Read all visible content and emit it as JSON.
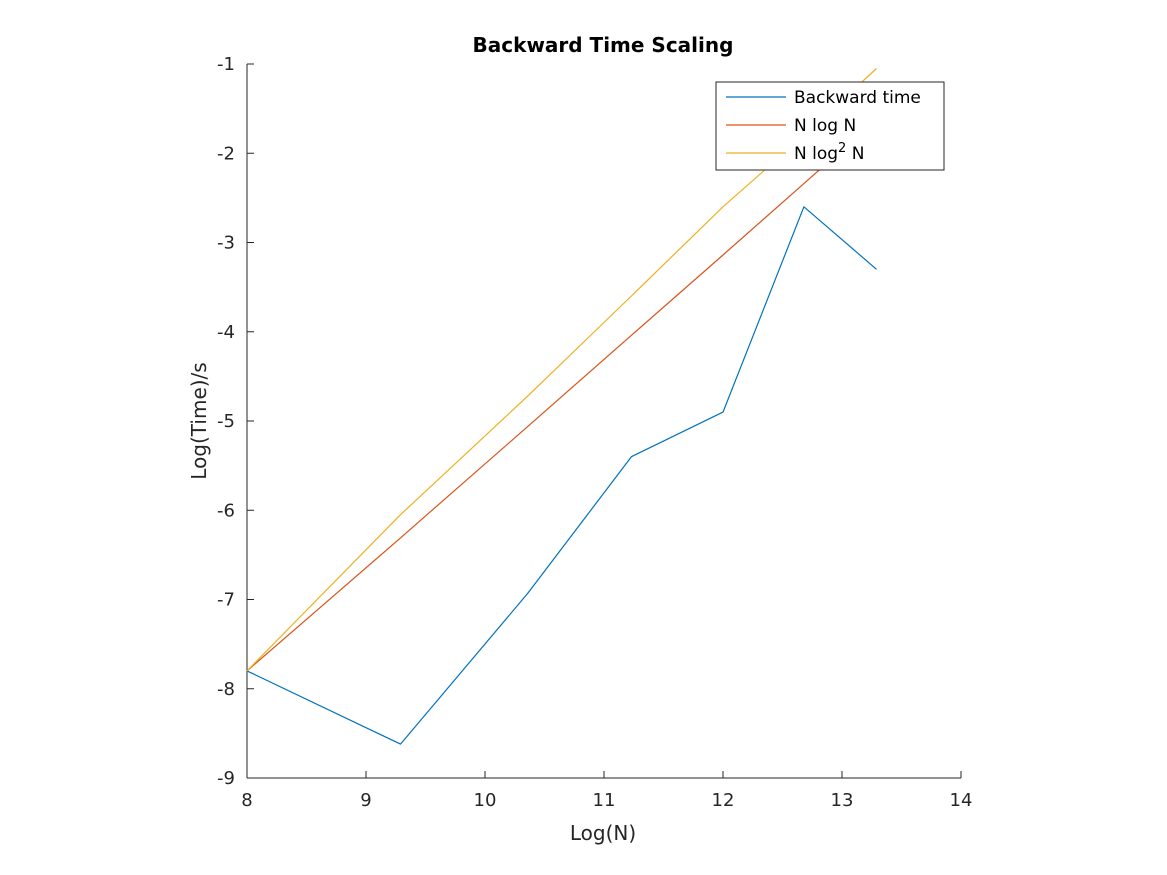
{
  "chart_data": {
    "type": "line",
    "title": "Backward Time Scaling",
    "xlabel": "Log(N)",
    "ylabel": "Log(Time)/s",
    "xlim": [
      8,
      14
    ],
    "ylim": [
      -9,
      -1
    ],
    "xticks": [
      "8",
      "9",
      "10",
      "11",
      "12",
      "13",
      "14"
    ],
    "yticks": [
      "-1",
      "-2",
      "-3",
      "-4",
      "-5",
      "-6",
      "-7",
      "-8",
      "-9"
    ],
    "grid": false,
    "legend_position": "top-right",
    "series": [
      {
        "name": "Backward time",
        "color": "#0072BD",
        "x": [
          8,
          9.29,
          10.36,
          11.23,
          12.0,
          12.68,
          13.29
        ],
        "y": [
          -7.8,
          -8.62,
          -6.93,
          -5.4,
          -4.9,
          -2.6,
          -3.3
        ]
      },
      {
        "name": "N log N",
        "color": "#D95319",
        "x": [
          8,
          9.29,
          10.36,
          11.23,
          12.0,
          12.68,
          13.29
        ],
        "y": [
          -7.8,
          -6.31,
          -5.06,
          -4.04,
          -3.14,
          -2.34,
          -1.62
        ]
      },
      {
        "name": "N log^2 N",
        "name_main": "N log",
        "name_sup": "2",
        "name_tail": " N",
        "color": "#EDB120",
        "x": [
          8,
          9.29,
          10.36,
          11.23,
          12.0,
          12.68,
          13.29
        ],
        "y": [
          -7.8,
          -6.05,
          -4.72,
          -3.6,
          -2.6,
          -1.8,
          -1.05
        ]
      }
    ]
  }
}
